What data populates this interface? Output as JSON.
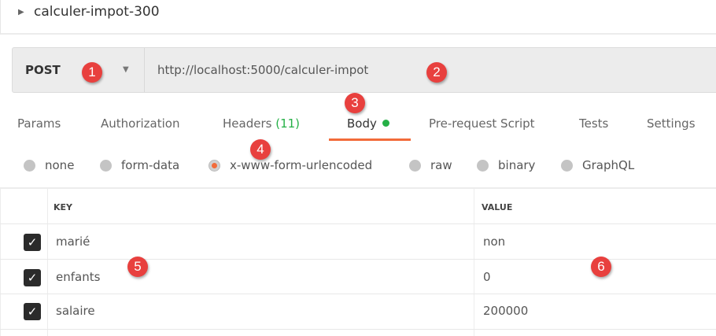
{
  "request": {
    "name": "calculer-impot-300",
    "method": "POST",
    "url": "http://localhost:5000/calculer-impot"
  },
  "tabs": [
    {
      "label": "Params"
    },
    {
      "label": "Authorization"
    },
    {
      "label": "Headers",
      "count": "(11)"
    },
    {
      "label": "Body",
      "active": true
    },
    {
      "label": "Pre-request Script"
    },
    {
      "label": "Tests"
    },
    {
      "label": "Settings"
    }
  ],
  "body_types": [
    {
      "label": "none"
    },
    {
      "label": "form-data"
    },
    {
      "label": "x-www-form-urlencoded",
      "selected": true
    },
    {
      "label": "raw"
    },
    {
      "label": "binary"
    },
    {
      "label": "GraphQL"
    }
  ],
  "table": {
    "headers": {
      "key": "KEY",
      "value": "VALUE"
    },
    "rows": [
      {
        "checked": true,
        "key": "marié",
        "value": "non"
      },
      {
        "checked": true,
        "key": "enfants",
        "value": "0"
      },
      {
        "checked": true,
        "key": "salaire",
        "value": "200000"
      }
    ]
  },
  "annotations": [
    "1",
    "2",
    "3",
    "4",
    "5",
    "6"
  ],
  "colors": {
    "accent": "#f26b3a",
    "active_dot": "#26b047",
    "headers_count": "#26b047",
    "badge": "#e8403e"
  }
}
